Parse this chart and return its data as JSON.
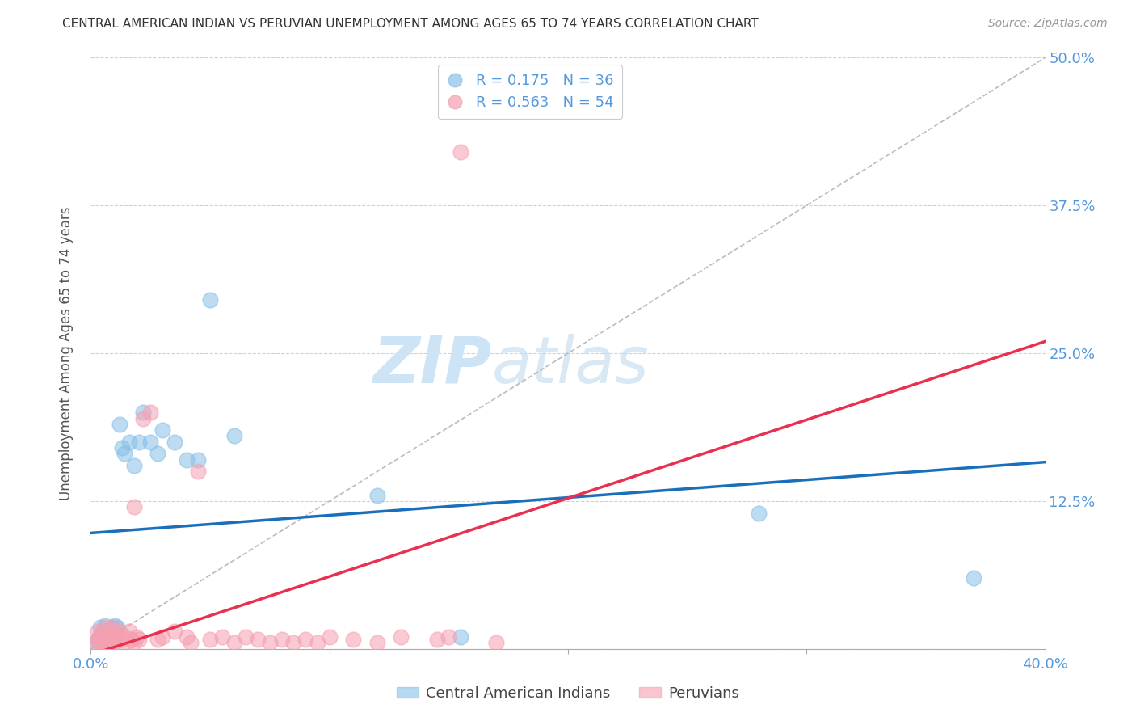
{
  "title": "CENTRAL AMERICAN INDIAN VS PERUVIAN UNEMPLOYMENT AMONG AGES 65 TO 74 YEARS CORRELATION CHART",
  "source": "Source: ZipAtlas.com",
  "ylabel": "Unemployment Among Ages 65 to 74 years",
  "xlim": [
    0.0,
    0.4
  ],
  "ylim": [
    0.0,
    0.5
  ],
  "yticks": [
    0.0,
    0.125,
    0.25,
    0.375,
    0.5
  ],
  "ytick_labels": [
    "",
    "12.5%",
    "25.0%",
    "37.5%",
    "50.0%"
  ],
  "blue_R": 0.175,
  "blue_N": 36,
  "pink_R": 0.563,
  "pink_N": 54,
  "blue_color": "#88c0e8",
  "pink_color": "#f5a0b0",
  "blue_trend_color": "#1a6fba",
  "pink_trend_color": "#e83050",
  "ref_line_color": "#bbbbbb",
  "title_color": "#333333",
  "axis_label_color": "#555555",
  "tick_label_color": "#5599dd",
  "watermark_color": "#cce4f5",
  "grid_color": "#cccccc",
  "background_color": "#ffffff",
  "blue_scatter_x": [
    0.002,
    0.003,
    0.004,
    0.004,
    0.005,
    0.005,
    0.006,
    0.006,
    0.007,
    0.007,
    0.008,
    0.008,
    0.009,
    0.009,
    0.01,
    0.01,
    0.011,
    0.012,
    0.013,
    0.014,
    0.016,
    0.018,
    0.02,
    0.022,
    0.025,
    0.028,
    0.03,
    0.035,
    0.04,
    0.045,
    0.05,
    0.06,
    0.12,
    0.155,
    0.28,
    0.37
  ],
  "blue_scatter_y": [
    0.005,
    0.008,
    0.01,
    0.018,
    0.005,
    0.015,
    0.008,
    0.02,
    0.005,
    0.01,
    0.008,
    0.015,
    0.018,
    0.005,
    0.01,
    0.02,
    0.018,
    0.19,
    0.17,
    0.165,
    0.175,
    0.155,
    0.175,
    0.2,
    0.175,
    0.165,
    0.185,
    0.175,
    0.16,
    0.16,
    0.295,
    0.18,
    0.13,
    0.01,
    0.115,
    0.06
  ],
  "pink_scatter_x": [
    0.002,
    0.003,
    0.003,
    0.004,
    0.004,
    0.005,
    0.005,
    0.006,
    0.006,
    0.007,
    0.007,
    0.008,
    0.008,
    0.009,
    0.009,
    0.01,
    0.01,
    0.011,
    0.012,
    0.013,
    0.014,
    0.015,
    0.016,
    0.017,
    0.018,
    0.018,
    0.019,
    0.02,
    0.022,
    0.025,
    0.028,
    0.03,
    0.035,
    0.04,
    0.042,
    0.045,
    0.05,
    0.055,
    0.06,
    0.065,
    0.07,
    0.075,
    0.08,
    0.085,
    0.09,
    0.095,
    0.1,
    0.11,
    0.12,
    0.13,
    0.145,
    0.15,
    0.155,
    0.17
  ],
  "pink_scatter_y": [
    0.005,
    0.008,
    0.015,
    0.005,
    0.012,
    0.005,
    0.01,
    0.008,
    0.018,
    0.005,
    0.012,
    0.005,
    0.015,
    0.008,
    0.018,
    0.005,
    0.012,
    0.01,
    0.015,
    0.008,
    0.01,
    0.005,
    0.015,
    0.008,
    0.005,
    0.12,
    0.01,
    0.008,
    0.195,
    0.2,
    0.008,
    0.01,
    0.015,
    0.01,
    0.005,
    0.15,
    0.008,
    0.01,
    0.005,
    0.01,
    0.008,
    0.005,
    0.008,
    0.005,
    0.008,
    0.005,
    0.01,
    0.008,
    0.005,
    0.01,
    0.008,
    0.01,
    0.42,
    0.005
  ]
}
